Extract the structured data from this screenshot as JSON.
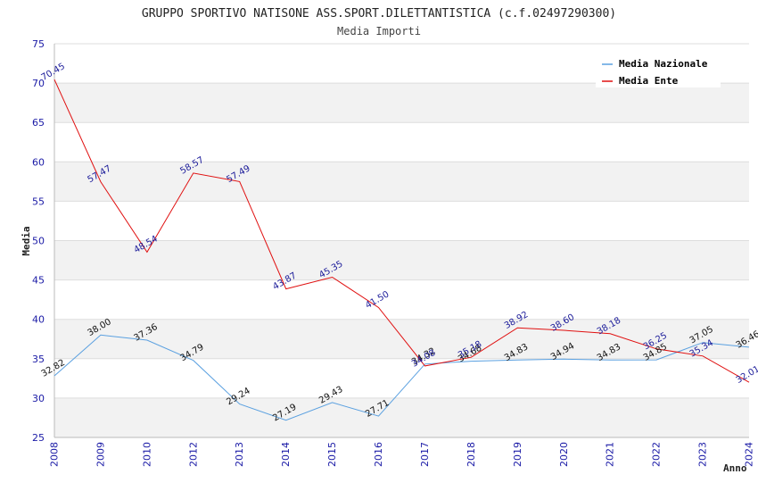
{
  "chart_data": {
    "type": "line",
    "title": "GRUPPO SPORTIVO NATISONE ASS.SPORT.DILETTANTISTICA (c.f.02497290300)",
    "subtitle": "Media Importi",
    "xlabel": "Anno",
    "ylabel": "Media",
    "ylim": [
      25,
      75
    ],
    "yticks": [
      25,
      30,
      35,
      40,
      45,
      50,
      55,
      60,
      65,
      70,
      75
    ],
    "grid": true,
    "legend_position": "top-right",
    "categories": [
      "2008",
      "2009",
      "2010",
      "2012",
      "2013",
      "2014",
      "2015",
      "2016",
      "2017",
      "2018",
      "2019",
      "2020",
      "2021",
      "2022",
      "2023",
      "2024"
    ],
    "series": [
      {
        "name": "Media Nazionale",
        "color": "#5aa0e0",
        "labels": [
          "32.82",
          "38.00",
          "37.36",
          "34.79",
          "29.24",
          "27.19",
          "29.43",
          "27.71",
          "34.32",
          "34.68",
          "34.83",
          "34.94",
          "34.83",
          "34.85",
          "37.05",
          "36.46"
        ],
        "values": [
          32.82,
          38.0,
          37.36,
          34.79,
          29.24,
          27.19,
          29.43,
          27.71,
          34.32,
          34.68,
          34.83,
          34.94,
          34.83,
          34.85,
          37.05,
          36.46
        ]
      },
      {
        "name": "Media Ente",
        "color": "#e01010",
        "labels": [
          "70.45",
          "57.47",
          "48.54",
          "58.57",
          "57.49",
          "43.87",
          "45.35",
          "41.50",
          "34.08",
          "35.18",
          "38.92",
          "38.60",
          "38.18",
          "36.25",
          "35.34",
          "32.01"
        ],
        "values": [
          70.45,
          57.47,
          48.54,
          58.57,
          57.49,
          43.87,
          45.35,
          41.5,
          34.08,
          35.18,
          38.92,
          38.6,
          38.18,
          36.25,
          35.34,
          32.01
        ]
      }
    ]
  }
}
